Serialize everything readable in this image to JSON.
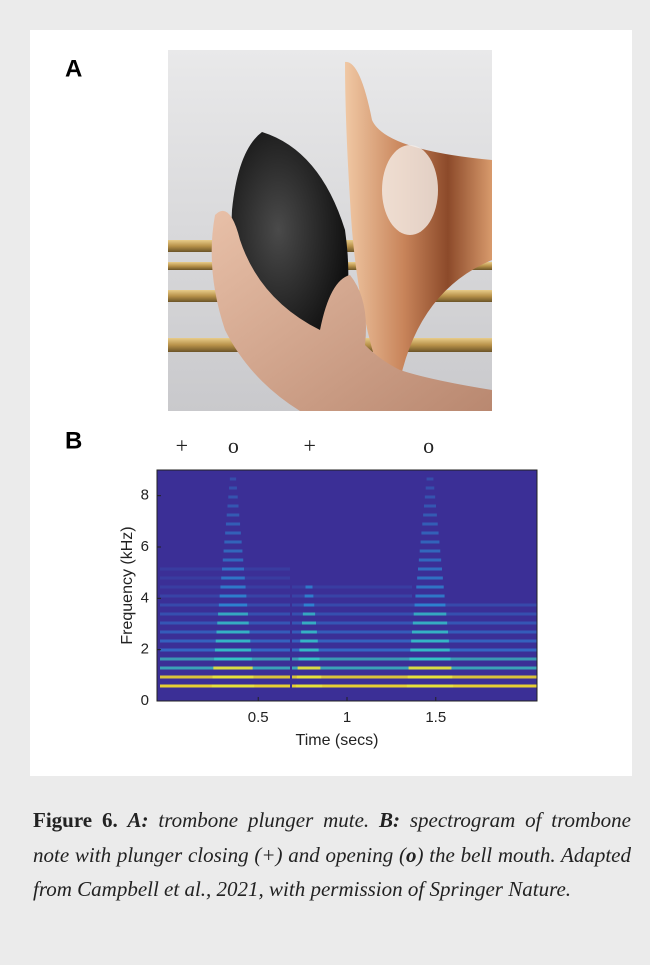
{
  "panel_a": {
    "label": "A"
  },
  "chart_data": {
    "type": "spectrogram",
    "label": "B",
    "xlabel": "Time (secs)",
    "ylabel": "Frequency (kHz)",
    "xlim": [
      -0.07,
      2.07
    ],
    "xticks": [
      0.5,
      1,
      1.5
    ],
    "ylim": [
      0,
      9
    ],
    "yticks": [
      0,
      2,
      4,
      6,
      8
    ],
    "annotations": [
      {
        "text": "+",
        "x": 0.07
      },
      {
        "text": "o",
        "x": 0.36
      },
      {
        "text": "+",
        "x": 0.79
      },
      {
        "text": "o",
        "x": 1.46
      }
    ]
  },
  "caption": {
    "parts": [
      "Figure 6.",
      "A:",
      " trombone plunger mute. ",
      "B:",
      " spectrogram of trombone note with plunger closing (+) and opening (",
      "o",
      ") the bell mouth. Adapted from Campbell et al., 2021, with permission of Springer Nature."
    ]
  }
}
